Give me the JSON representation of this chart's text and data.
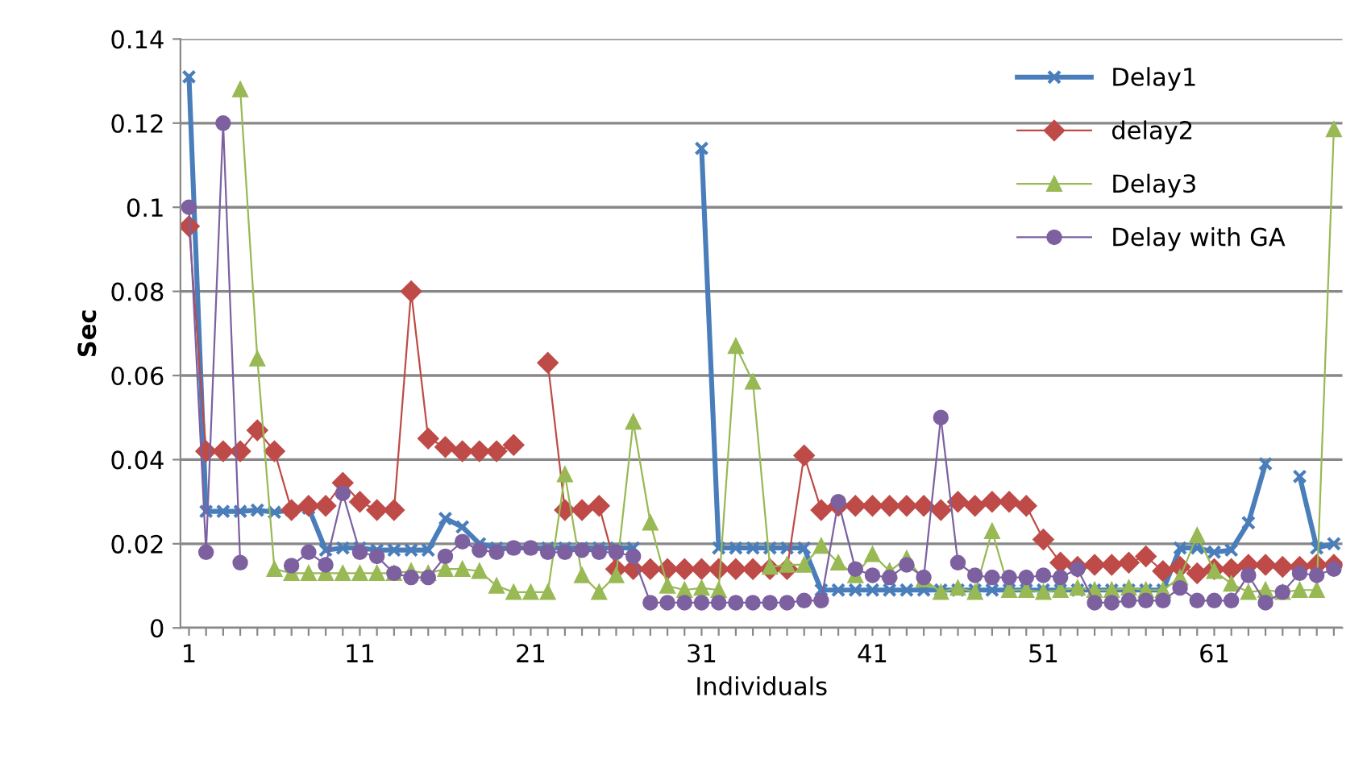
{
  "chart_data": {
    "type": "line",
    "xlabel": "Individuals",
    "ylabel": "Sec",
    "categories": [
      "1",
      null,
      null,
      null,
      null,
      null,
      null,
      null,
      null,
      null,
      "11",
      null,
      null,
      null,
      null,
      null,
      null,
      null,
      null,
      null,
      "21",
      null,
      null,
      null,
      null,
      null,
      null,
      null,
      null,
      null,
      "31",
      null,
      null,
      null,
      null,
      null,
      null,
      null,
      null,
      null,
      "41",
      null,
      null,
      null,
      null,
      null,
      null,
      null,
      null,
      null,
      "51",
      null,
      null,
      null,
      null,
      null,
      null,
      null,
      null,
      null,
      "61",
      null,
      null,
      null,
      null,
      null,
      null,
      null
    ],
    "series": [
      {
        "name": "Delay1",
        "color": "#4a7ebb",
        "marker": "cross",
        "values": [
          0.131,
          0.0277,
          0.0277,
          0.0277,
          0.028,
          0.0275,
          0.028,
          0.0285,
          0.0185,
          0.019,
          0.019,
          0.0185,
          0.0185,
          0.0185,
          0.0185,
          0.026,
          0.024,
          0.02,
          0.019,
          0.019,
          0.019,
          0.019,
          0.019,
          0.019,
          0.019,
          0.019,
          0.019,
          null,
          null,
          null,
          0.114,
          0.019,
          0.019,
          0.019,
          0.019,
          0.019,
          0.019,
          0.009,
          0.009,
          0.009,
          0.009,
          0.009,
          0.009,
          0.009,
          0.009,
          0.009,
          0.009,
          0.009,
          0.009,
          0.009,
          0.009,
          0.009,
          0.009,
          0.009,
          0.009,
          0.009,
          0.009,
          0.009,
          0.019,
          0.019,
          0.018,
          0.0185,
          0.025,
          0.039,
          null,
          0.036,
          0.019,
          0.02
        ]
      },
      {
        "name": "delay2",
        "color": "#be4b48",
        "marker": "diamond",
        "values": [
          0.0955,
          0.042,
          0.042,
          0.042,
          0.047,
          0.042,
          0.028,
          0.029,
          0.029,
          0.0345,
          0.03,
          0.028,
          0.028,
          0.08,
          0.045,
          0.043,
          0.042,
          0.042,
          0.042,
          0.0435,
          null,
          0.063,
          0.028,
          0.028,
          0.029,
          0.014,
          0.014,
          0.014,
          0.014,
          0.014,
          0.014,
          0.014,
          0.014,
          0.014,
          0.014,
          0.014,
          0.041,
          0.028,
          0.029,
          0.029,
          0.029,
          0.029,
          0.029,
          0.029,
          0.028,
          0.03,
          0.029,
          0.03,
          0.03,
          0.029,
          0.021,
          0.0155,
          0.0145,
          0.015,
          0.015,
          0.0155,
          0.017,
          0.0135,
          0.0145,
          0.013,
          0.014,
          0.014,
          0.015,
          0.015,
          0.0145,
          0.0145,
          0.015,
          0.015
        ]
      },
      {
        "name": "Delay3",
        "color": "#98b954",
        "marker": "triangle",
        "values": [
          null,
          null,
          null,
          0.128,
          0.064,
          0.014,
          0.013,
          0.013,
          0.013,
          0.013,
          0.013,
          0.013,
          0.013,
          0.0135,
          0.013,
          0.014,
          0.014,
          0.0135,
          0.01,
          0.0085,
          0.0085,
          0.0085,
          0.0365,
          0.0125,
          0.0085,
          0.0125,
          0.049,
          0.025,
          0.01,
          0.009,
          0.0095,
          0.009,
          0.067,
          0.0585,
          0.0145,
          0.015,
          0.015,
          0.0195,
          0.0155,
          0.0125,
          0.0175,
          0.0135,
          0.0165,
          0.0115,
          0.0085,
          0.0095,
          0.0085,
          0.023,
          0.009,
          0.009,
          0.0085,
          0.009,
          0.0095,
          0.009,
          0.009,
          0.0095,
          0.009,
          0.009,
          0.012,
          0.022,
          0.0135,
          0.0105,
          0.0085,
          0.009,
          0.0085,
          0.009,
          0.009,
          0.1185
        ]
      },
      {
        "name": "Delay with GA",
        "color": "#7d60a0",
        "marker": "circle",
        "values": [
          0.1,
          0.018,
          0.12,
          0.0155,
          null,
          null,
          0.0148,
          0.018,
          0.015,
          0.032,
          0.018,
          0.017,
          0.013,
          0.012,
          0.012,
          0.017,
          0.0205,
          0.0185,
          0.018,
          0.019,
          0.019,
          0.018,
          0.018,
          0.0185,
          0.018,
          0.018,
          0.017,
          0.006,
          0.006,
          0.006,
          0.006,
          0.006,
          0.006,
          0.006,
          0.006,
          0.006,
          0.0065,
          0.0065,
          0.03,
          0.014,
          0.0125,
          0.012,
          0.015,
          0.012,
          0.05,
          0.0155,
          0.0125,
          0.012,
          0.012,
          0.012,
          0.0125,
          0.012,
          0.014,
          0.006,
          0.006,
          0.0065,
          0.0065,
          0.0065,
          0.0095,
          0.0065,
          0.0065,
          0.0065,
          0.0125,
          0.006,
          0.0085,
          0.013,
          0.0125,
          0.014
        ]
      }
    ],
    "ylim": [
      0,
      0.14
    ],
    "yticks": [
      0,
      0.02,
      0.04,
      0.06,
      0.08,
      0.1,
      0.12,
      0.14
    ],
    "grid": "y",
    "legend": "top right"
  }
}
